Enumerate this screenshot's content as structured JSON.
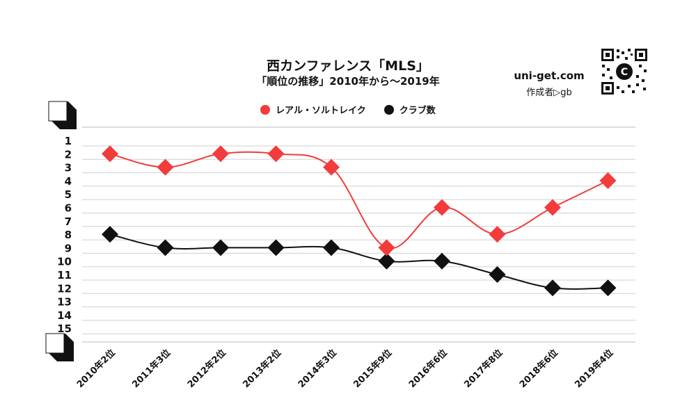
{
  "header": {
    "title": "西カンファレンス「MLS」",
    "subtitle": "「順位の推移」2010年から～2019年"
  },
  "branding": {
    "site": "uni-get.com",
    "author": "作成者▷gb",
    "qr_label": "C"
  },
  "chart_data": {
    "type": "line",
    "categories": [
      "2010年2位",
      "2011年3位",
      "2012年2位",
      "2013年2位",
      "2014年3位",
      "2015年9位",
      "2016年6位",
      "2017年8位",
      "2018年6位",
      "2019年4位"
    ],
    "y_ticks": [
      "1",
      "2",
      "3",
      "4",
      "5",
      "6",
      "7",
      "8",
      "9",
      "10",
      "11",
      "12",
      "13",
      "14",
      "15"
    ],
    "ylim": [
      1,
      15
    ],
    "y_inverted": true,
    "grid": true,
    "legend_position": "top-center",
    "series": [
      {
        "name": "レアル・ソルトレイク",
        "color": "#f23b3b",
        "values": [
          2,
          3,
          2,
          2,
          3,
          9,
          6,
          8,
          6,
          4
        ]
      },
      {
        "name": "クラブ数",
        "color": "#111111",
        "values": [
          8,
          9,
          9,
          9,
          9,
          10,
          10,
          11,
          12,
          12
        ]
      }
    ]
  }
}
